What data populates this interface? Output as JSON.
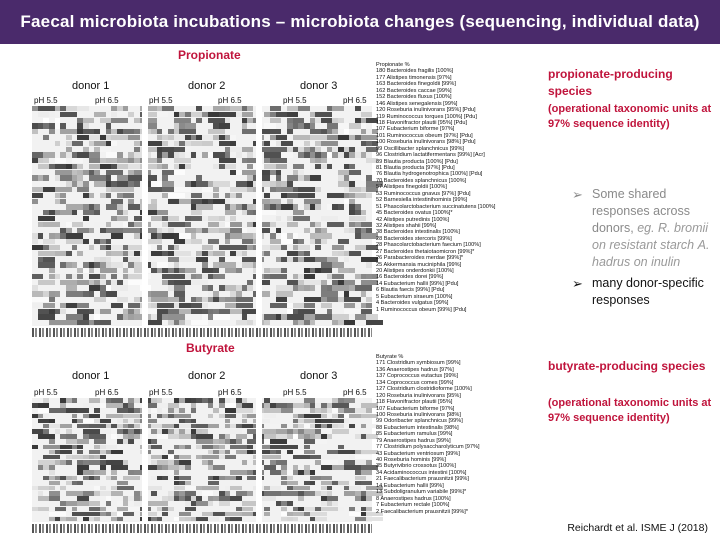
{
  "slide": {
    "title": "Faecal microbiota incubations – microbiota changes (sequencing, individual data)",
    "citation": "Reichardt et al. ISME J (2018)"
  },
  "propionate": {
    "section_label": "Propionate",
    "donors": [
      "donor 1",
      "donor 2",
      "donor 3"
    ],
    "ph_labels": [
      "pH 5.5",
      "pH 6.5",
      "pH 5.5",
      "pH 6.5",
      "pH 5.5",
      "pH 6.5"
    ],
    "list_header": "Propionate %",
    "species": [
      "180 Bacteroides fragilis [100%]",
      "177 Alistipes timonensis [97%]",
      "163 Bacteroides finegoldii [99%]",
      "162 Bacteroides caccae [99%]",
      "152 Bacteroides fluxus [100%]",
      "146 Alistipes senegalensis [99%]",
      "120 Roseburia inulinivorans [95%] [Pdu]",
      "119 Ruminococcus torques [100%] [Pdu]",
      "118 Flavonifractor plautii [95%] [Pdu]",
      "107 Eubacterium biforme [97%]",
      "101 Ruminococcus obeum [97%] [Pdu]",
      "100 Roseburia inulinivorans [98%] [Pdu]",
      "99 Oscillibacter splanchnicus [99%]",
      "96 Clostridium lactatifermentans [99%] [Acr]",
      "89 Blautia producta [100%] [Pdu]",
      "81 Blautia producta [97%] [Pdu]",
      "76 Blautia hydrogenotrophica [100%] [Pdu]",
      "70 Bacteroides splanchnicus [100%]",
      "57 Alistipes finegoldii [100%]",
      "53 Ruminococcus gnavus [97%] [Pdu]",
      "52 Barnesiella intestinihominis [99%]",
      "51 Phascolarctobacterium succinatutens [100%]",
      "45 Bacteroides ovatus [100%]*",
      "42 Alistipes putredinis [100%]",
      "32 Alistipes shahii [99%]",
      "38 Bacteroides intestinalis [100%]",
      "28 Bacteroides stercoris [99%]",
      "28 Phascolarctobacterium faecium [100%]",
      "27 Bacteroides thetaiotaomicron [99%]*",
      "26 Parabacteroides merdae [99%]*",
      "25 Akkermansia muciniphila [99%]",
      "20 Alistipes onderdonkii [100%]",
      "16 Bacteroides dorei [99%]",
      "14 Eubacterium hallii [99%] [Pdu]",
      "6 Blautia faecis [99%] [Pdu]",
      "5 Eubacterium siraeum [100%]",
      "4 Bacteroides vulgatus [99%]",
      "1 Ruminococcus obeum [99%] [Pdu]"
    ]
  },
  "butyrate": {
    "section_label": "Butyrate",
    "donors": [
      "donor 1",
      "donor 2",
      "donor 3"
    ],
    "ph_labels": [
      "pH 5.5",
      "pH 6.5",
      "pH 5.5",
      "pH 6.5",
      "pH 5.5",
      "pH 6.5"
    ],
    "list_header": "Butyrate %",
    "species": [
      "171 Clostridium symbiosum [99%]",
      "136 Anaerostipes hadrus [97%]",
      "137 Coprococcus eutactus [99%]",
      "134 Coprococcus comes [99%]",
      "127 Clostridium clostridioforme [100%]",
      "120 Roseburia inulinivorans [95%]",
      "118 Flavonifractor plautii [95%]",
      "107 Eubacterium biforme [97%]",
      "100 Roseburia inulinivorans [98%]",
      "99 Odoribacter splanchnicus [99%]",
      "88 Eubacterium intestinalis [98%]",
      "85 Eubacterium ramulus [99%]",
      "79 Anaerostipes hadrus [99%]",
      "77 Clostridium polysaccharolyticum [97%]",
      "43 Eubacterium ventriosum [99%]",
      "40 Roseburia hominis [99%]",
      "35 Butyrivibrio crossotus [100%]",
      "34 Acidaminococcus intestini [100%]",
      "21 Faecalibacterium prausnitzii [99%]",
      "14 Eubacterium hallii [99%]",
      "13 Subdoligranulum variabile [99%]*",
      "8 Anaerostipes hadrus [100%]",
      "7 Eubacterium rectale [100%]",
      "2 Faecalibacterium prausnitzii [99%]*"
    ]
  },
  "right_panel": {
    "prop_head": "propionate-producing species",
    "prop_sub": "(operational taxonomic units at 97% sequence identity)",
    "bullet1_a": "Some shared responses across donors,",
    "bullet1_b": "eg. R. bromii on resistant starch",
    "bullet1_c": "A. hadrus on inulin",
    "bullet2": "many donor-specific responses",
    "but_head": "butyrate-producing species",
    "but_sub": "(operational taxonomic units at 97% sequence identity)"
  },
  "icons": {
    "bullet": "arrow-bullet-icon"
  },
  "colors": {
    "title_bg": "#4a2a6b",
    "accent": "#c0143c"
  }
}
